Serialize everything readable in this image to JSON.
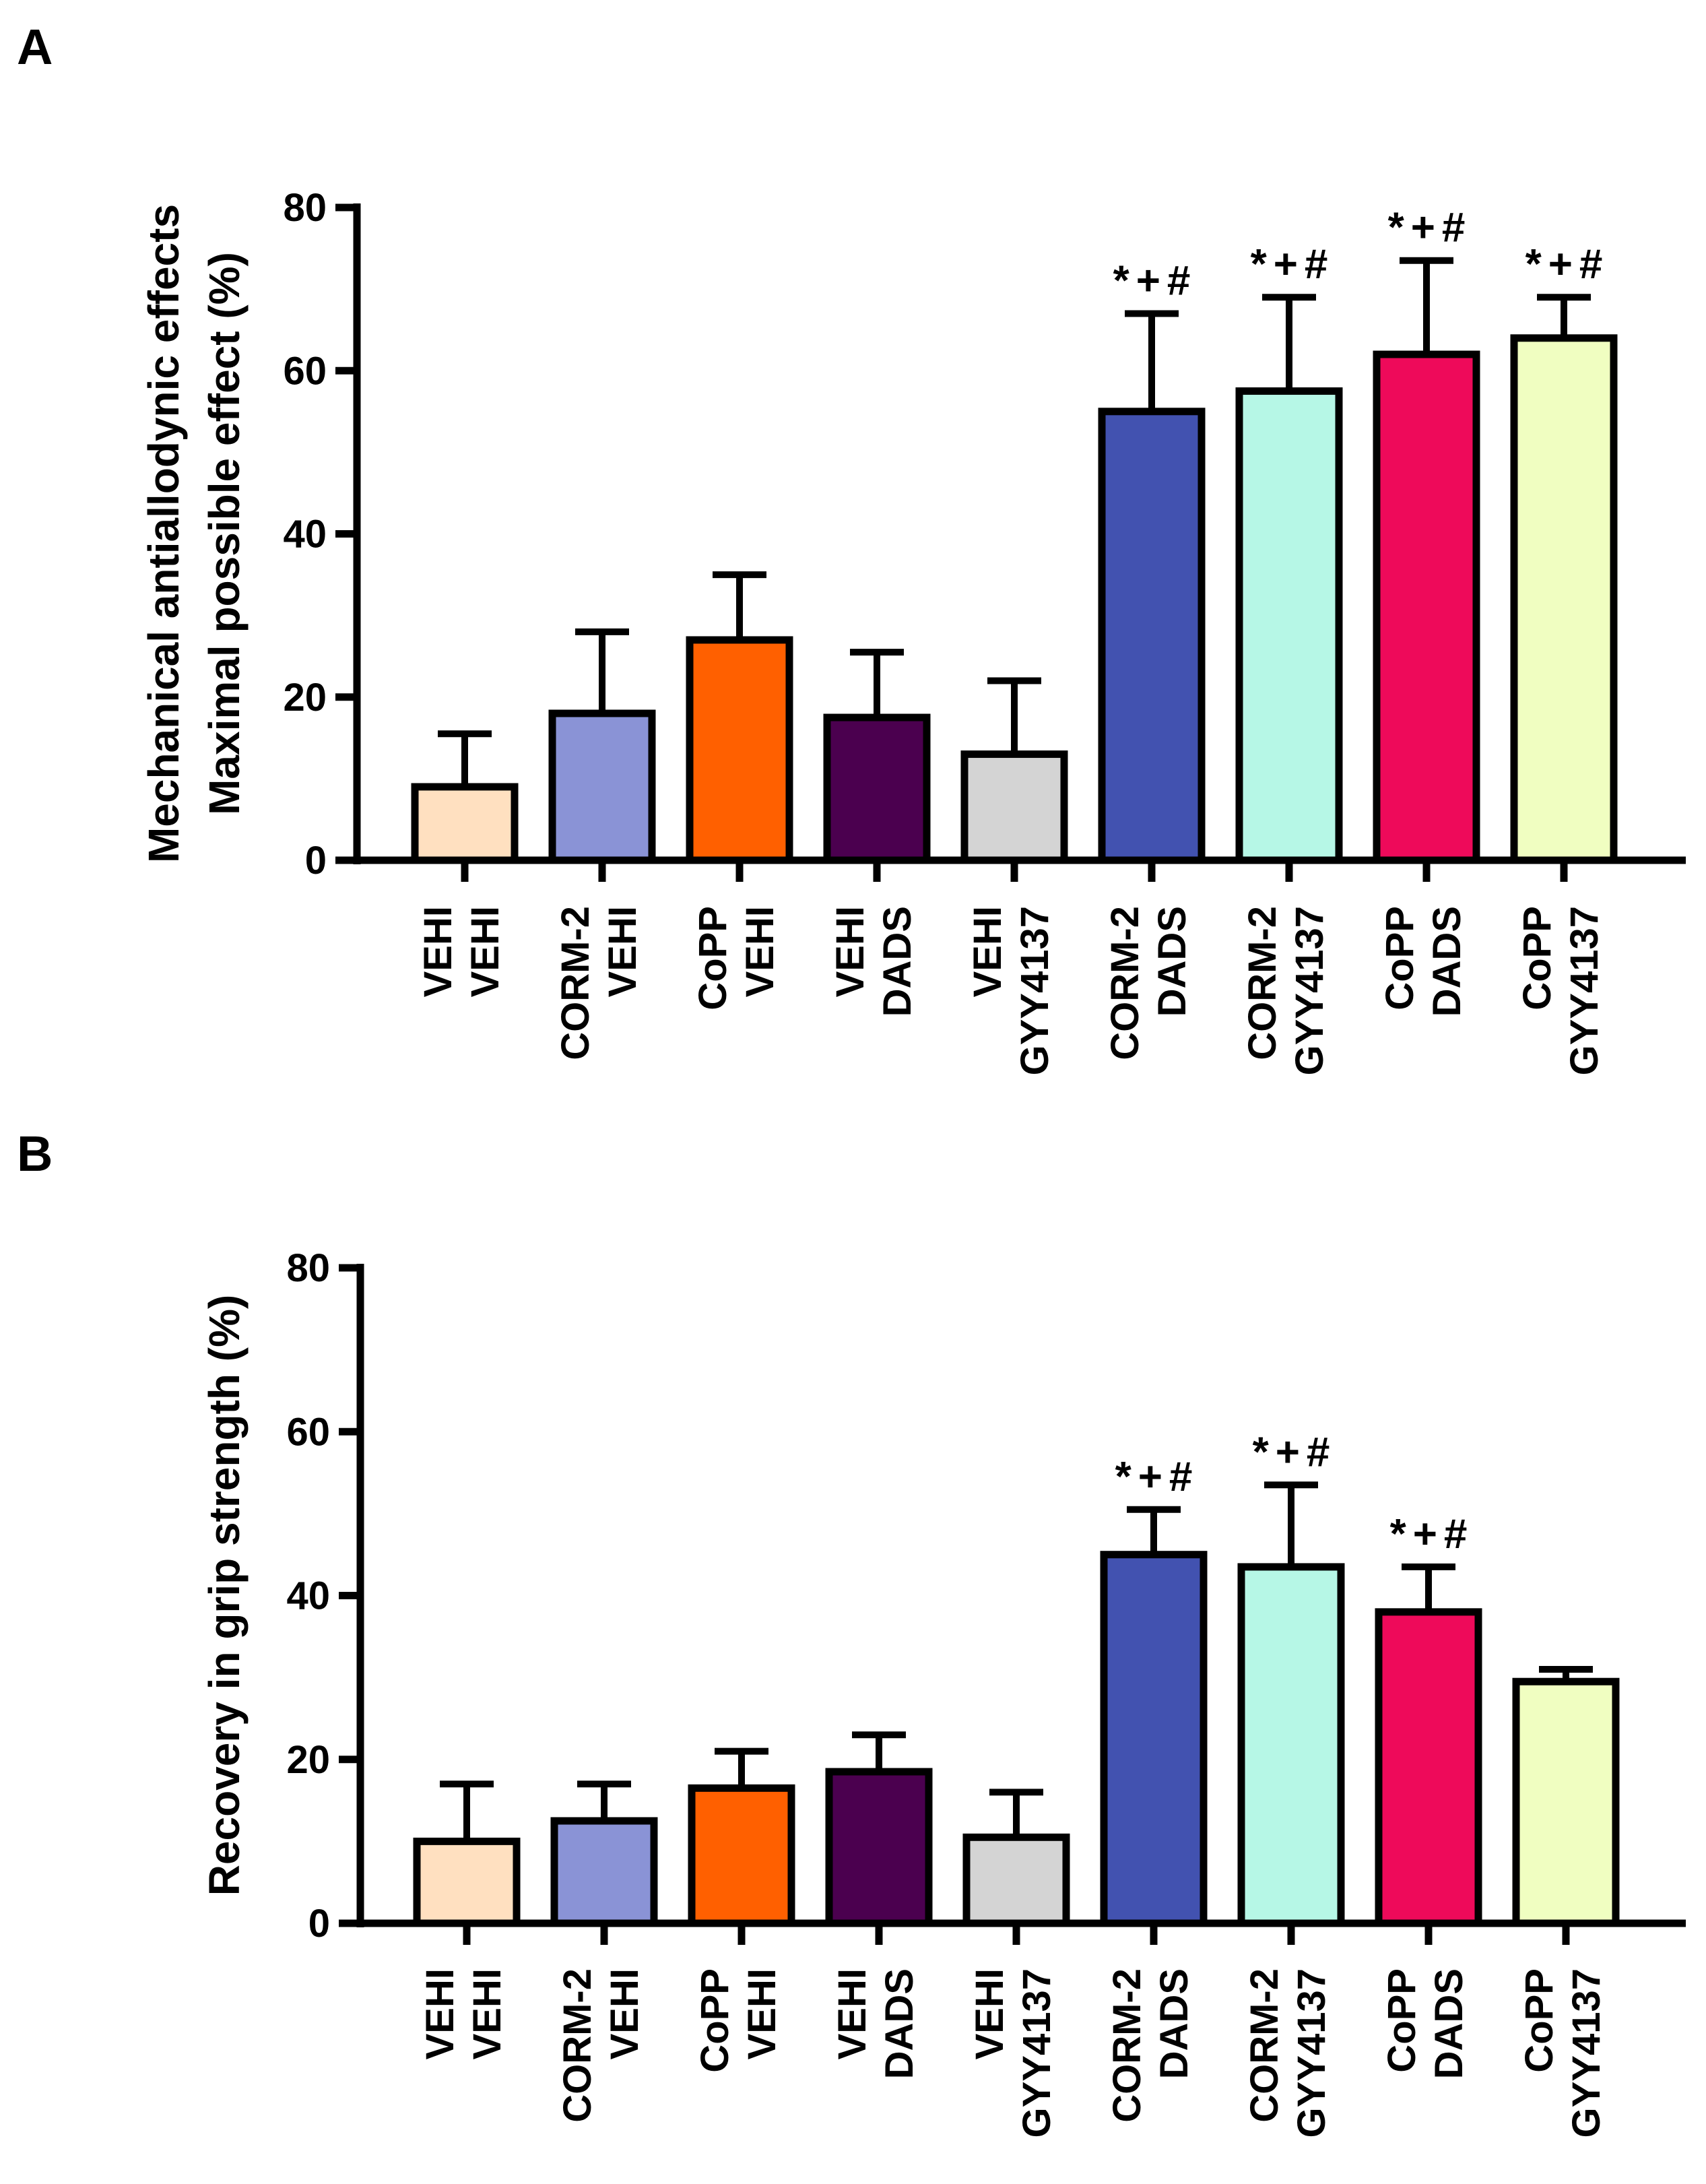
{
  "chart_data": [
    {
      "panel": "A",
      "type": "bar",
      "ylabel_lines": [
        "Mechanical antiallodynic effects",
        "Maximal possible effect (%)"
      ],
      "ylim": [
        0,
        80
      ],
      "yticks": [
        0,
        20,
        40,
        60,
        80
      ],
      "categories": [
        [
          "VEHI",
          "VEHI"
        ],
        [
          "CORM-2",
          "VEHI"
        ],
        [
          "CoPP",
          "VEHI"
        ],
        [
          "VEHI",
          "DADS"
        ],
        [
          "VEHI",
          "GYY4137"
        ],
        [
          "CORM-2",
          "DADS"
        ],
        [
          "CORM-2",
          "GYY4137"
        ],
        [
          "CoPP",
          "DADS"
        ],
        [
          "CoPP",
          "GYY4137"
        ]
      ],
      "values": [
        9,
        18,
        27,
        17.5,
        13,
        55,
        57.5,
        62,
        64
      ],
      "errors": [
        6.5,
        10,
        8,
        8,
        9,
        12,
        11.5,
        11.5,
        5
      ],
      "colors": [
        "#FFE0C0",
        "#8A93D6",
        "#FF6000",
        "#4B004F",
        "#D4D4D4",
        "#4252B0",
        "#B6F7E6",
        "#EE0A5A",
        "#F0FEC1"
      ],
      "annotations": [
        "",
        "",
        "",
        "",
        "",
        "*+#",
        "*+#",
        "*+#",
        "*+#"
      ]
    },
    {
      "panel": "B",
      "type": "bar",
      "ylabel_lines": [
        "Recovery in grip strength (%)"
      ],
      "ylim": [
        0,
        80
      ],
      "yticks": [
        0,
        20,
        40,
        60,
        80
      ],
      "categories": [
        [
          "VEHI",
          "VEHI"
        ],
        [
          "CORM-2",
          "VEHI"
        ],
        [
          "CoPP",
          "VEHI"
        ],
        [
          "VEHI",
          "DADS"
        ],
        [
          "VEHI",
          "GYY4137"
        ],
        [
          "CORM-2",
          "DADS"
        ],
        [
          "CORM-2",
          "GYY4137"
        ],
        [
          "CoPP",
          "DADS"
        ],
        [
          "CoPP",
          "GYY4137"
        ]
      ],
      "values": [
        10,
        12.5,
        16.5,
        18.5,
        10.5,
        45,
        43.5,
        38,
        29.5
      ],
      "errors": [
        7,
        4.5,
        4.5,
        4.5,
        5.5,
        5.5,
        10,
        5.5,
        1.5
      ],
      "colors": [
        "#FFE0C0",
        "#8A93D6",
        "#FF6000",
        "#4B004F",
        "#D4D4D4",
        "#4252B0",
        "#B6F7E6",
        "#EE0A5A",
        "#F0FEC1"
      ],
      "annotations": [
        "",
        "",
        "",
        "",
        "",
        "*+#",
        "*+#",
        "*+#",
        ""
      ]
    }
  ]
}
